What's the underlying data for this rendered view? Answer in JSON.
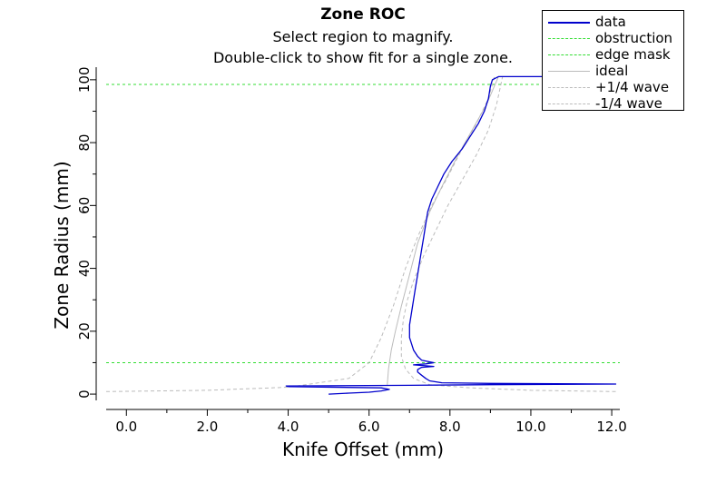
{
  "titles": {
    "main": "Zone ROC",
    "line2": "Select region to magnify.",
    "line3": "Double-click to show fit for a single zone."
  },
  "colors": {
    "data": "#0000cc",
    "obstruction": "#33dd33",
    "edge_mask": "#33dd33",
    "ideal": "#bbbbbb",
    "plus_quarter_wave": "#bbbbbb",
    "minus_quarter_wave": "#bbbbbb"
  },
  "chart_data": {
    "type": "line",
    "title": "Zone ROC",
    "xlabel": "Knife Offset (mm)",
    "ylabel": "Zone Radius (mm)",
    "xlim": [
      -0.5,
      12.2
    ],
    "ylim": [
      -2,
      104
    ],
    "x_ticks": [
      "0.0",
      "2.0",
      "4.0",
      "6.0",
      "8.0",
      "10.0",
      "12.0"
    ],
    "y_ticks": [
      "0",
      "20",
      "40",
      "60",
      "80",
      "100"
    ],
    "legend": [
      "data",
      "obstruction",
      "edge mask",
      "ideal",
      "+1/4 wave",
      "-1/4 wave"
    ],
    "legend_position": "top-right",
    "grid": false,
    "hlines": [
      {
        "name": "obstruction",
        "y": 10
      },
      {
        "name": "edge mask",
        "y": 98.5
      }
    ],
    "series": [
      {
        "name": "data",
        "style": "solid",
        "points": [
          [
            5.0,
            0
          ],
          [
            5.5,
            0.3
          ],
          [
            6.0,
            0.6
          ],
          [
            6.3,
            1.0
          ],
          [
            6.5,
            1.5
          ],
          [
            6.3,
            2.0
          ],
          [
            4.0,
            2.4
          ],
          [
            3.95,
            2.6
          ],
          [
            7.0,
            2.8
          ],
          [
            9.0,
            3.0
          ],
          [
            12.1,
            3.2
          ],
          [
            9.0,
            3.4
          ],
          [
            7.8,
            3.6
          ],
          [
            7.5,
            4.2
          ],
          [
            7.4,
            5.0
          ],
          [
            7.3,
            6.0
          ],
          [
            7.2,
            7.0
          ],
          [
            7.2,
            7.8
          ],
          [
            7.3,
            8.5
          ],
          [
            7.6,
            8.8
          ],
          [
            7.4,
            9.0
          ],
          [
            7.1,
            9.3
          ],
          [
            7.4,
            9.6
          ],
          [
            7.6,
            10.0
          ],
          [
            7.3,
            10.8
          ],
          [
            7.2,
            12.0
          ],
          [
            7.1,
            14.0
          ],
          [
            7.05,
            16.0
          ],
          [
            7.0,
            18.0
          ],
          [
            7.0,
            20.0
          ],
          [
            7.0,
            22.0
          ],
          [
            7.05,
            26.0
          ],
          [
            7.1,
            30.0
          ],
          [
            7.15,
            34.0
          ],
          [
            7.2,
            38.0
          ],
          [
            7.25,
            42.0
          ],
          [
            7.3,
            46.0
          ],
          [
            7.35,
            50.0
          ],
          [
            7.4,
            54.0
          ],
          [
            7.45,
            58.0
          ],
          [
            7.55,
            62.0
          ],
          [
            7.7,
            66.0
          ],
          [
            7.85,
            70.0
          ],
          [
            8.05,
            74.0
          ],
          [
            8.3,
            78.0
          ],
          [
            8.5,
            82.0
          ],
          [
            8.7,
            86.0
          ],
          [
            8.85,
            90.0
          ],
          [
            8.95,
            94.0
          ],
          [
            9.0,
            98.0
          ],
          [
            9.05,
            100.0
          ],
          [
            9.2,
            101.0
          ],
          [
            12.1,
            101.0
          ]
        ]
      },
      {
        "name": "ideal",
        "style": "solid",
        "points": [
          [
            6.45,
            2.8
          ],
          [
            6.48,
            8.0
          ],
          [
            6.55,
            14.0
          ],
          [
            6.65,
            20.0
          ],
          [
            6.8,
            28.0
          ],
          [
            7.0,
            38.0
          ],
          [
            7.2,
            48.0
          ],
          [
            7.5,
            58.0
          ],
          [
            7.8,
            66.0
          ],
          [
            8.2,
            76.0
          ],
          [
            8.55,
            84.0
          ],
          [
            8.9,
            92.0
          ],
          [
            9.1,
            98.0
          ],
          [
            9.2,
            101.0
          ]
        ]
      },
      {
        "name": "+1/4 wave",
        "style": "dashed",
        "points": [
          [
            -0.5,
            0.8
          ],
          [
            2.0,
            1.2
          ],
          [
            4.0,
            2.2
          ],
          [
            5.5,
            5.0
          ],
          [
            6.0,
            10.0
          ],
          [
            6.3,
            18.0
          ],
          [
            6.6,
            28.0
          ],
          [
            6.9,
            40.0
          ],
          [
            7.2,
            50.0
          ],
          [
            7.55,
            60.0
          ],
          [
            7.9,
            68.0
          ],
          [
            8.3,
            78.0
          ],
          [
            8.65,
            86.0
          ],
          [
            8.95,
            94.0
          ],
          [
            9.1,
            101.0
          ]
        ]
      },
      {
        "name": "-1/4 wave",
        "style": "dashed",
        "points": [
          [
            12.1,
            0.8
          ],
          [
            10.0,
            1.2
          ],
          [
            8.5,
            2.0
          ],
          [
            7.5,
            3.0
          ],
          [
            7.1,
            5.0
          ],
          [
            6.9,
            8.0
          ],
          [
            6.8,
            12.0
          ],
          [
            6.8,
            18.0
          ],
          [
            6.85,
            24.0
          ],
          [
            6.95,
            30.0
          ],
          [
            7.1,
            36.0
          ],
          [
            7.35,
            44.0
          ],
          [
            7.65,
            52.0
          ],
          [
            7.95,
            60.0
          ],
          [
            8.3,
            68.0
          ],
          [
            8.65,
            76.0
          ],
          [
            8.95,
            84.0
          ],
          [
            9.15,
            92.0
          ],
          [
            9.3,
            101.0
          ]
        ]
      }
    ]
  }
}
